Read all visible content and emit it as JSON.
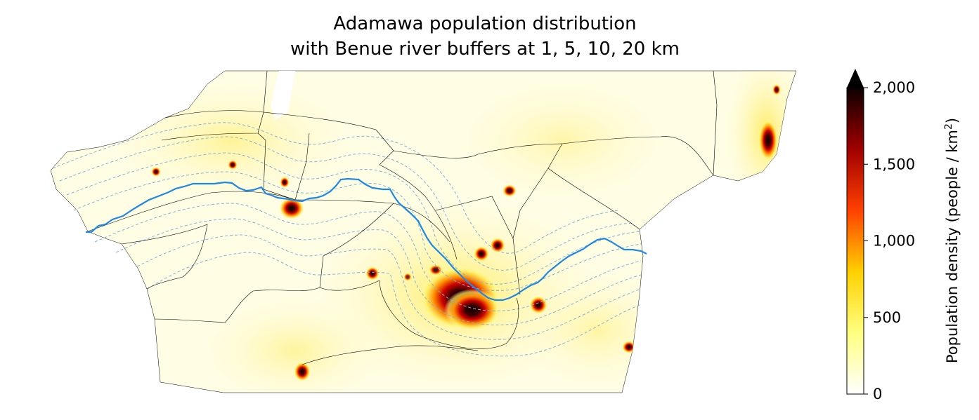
{
  "chart_data": {
    "type": "heatmap",
    "title": "Adamawa population distribution",
    "subtitle": "with Benue river buffers at 1, 5, 10, 20 km",
    "colorbar": {
      "label": "Population density (people / km",
      "label_sup": "2",
      "label_close": ")",
      "ticks": [
        0,
        500,
        1000,
        1500,
        2000
      ],
      "tick_labels": [
        "0",
        "500",
        "1,000",
        "1,500",
        "2,000"
      ],
      "range": [
        0,
        2000
      ],
      "extend": "max",
      "colormap": "hot_r"
    },
    "river_buffers_km": [
      1,
      5,
      10,
      20
    ],
    "colors": {
      "river": "#1e88e5",
      "buffer": "#7fb3de",
      "boundary": "#000000"
    }
  }
}
